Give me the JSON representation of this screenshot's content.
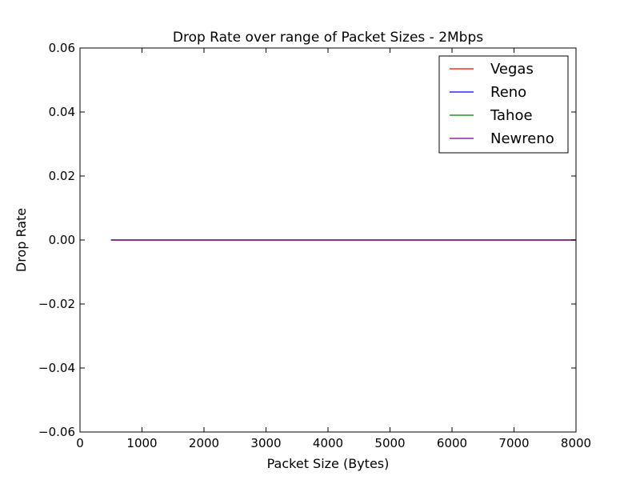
{
  "chart_data": {
    "type": "line",
    "title": "Drop Rate over range of Packet Sizes - 2Mbps",
    "xlabel": "Packet Size (Bytes)",
    "ylabel": "Drop Rate",
    "xlim": [
      0,
      8000
    ],
    "ylim": [
      -0.06,
      0.06
    ],
    "xticks": [
      0,
      1000,
      2000,
      3000,
      4000,
      5000,
      6000,
      7000,
      8000
    ],
    "xtick_labels": [
      "0",
      "1000",
      "2000",
      "3000",
      "4000",
      "5000",
      "6000",
      "7000",
      "8000"
    ],
    "yticks": [
      -0.06,
      -0.04,
      -0.02,
      0.0,
      0.02,
      0.04,
      0.06
    ],
    "ytick_labels": [
      "−0.06",
      "−0.04",
      "−0.02",
      "0.00",
      "0.02",
      "0.04",
      "0.06"
    ],
    "grid": false,
    "legend_position": "top-right",
    "x": [
      500,
      1000,
      1500,
      2000,
      2500,
      3000,
      3500,
      4000,
      4500,
      5000,
      5500,
      6000,
      6500,
      7000,
      7500,
      8000
    ],
    "series": [
      {
        "name": "Vegas",
        "color": "#ff0000",
        "values": [
          0,
          0,
          0,
          0,
          0,
          0,
          0,
          0,
          0,
          0,
          0,
          0,
          0,
          0,
          0,
          0
        ]
      },
      {
        "name": "Reno",
        "color": "#0000ff",
        "values": [
          0,
          0,
          0,
          0,
          0,
          0,
          0,
          0,
          0,
          0,
          0,
          0,
          0,
          0,
          0,
          0
        ]
      },
      {
        "name": "Tahoe",
        "color": "#008000",
        "values": [
          0,
          0,
          0,
          0,
          0,
          0,
          0,
          0,
          0,
          0,
          0,
          0,
          0,
          0,
          0,
          0
        ]
      },
      {
        "name": "Newreno",
        "color": "#800080",
        "values": [
          0,
          0,
          0,
          0,
          0,
          0,
          0,
          0,
          0,
          0,
          0,
          0,
          0,
          0,
          0,
          0
        ]
      }
    ]
  }
}
